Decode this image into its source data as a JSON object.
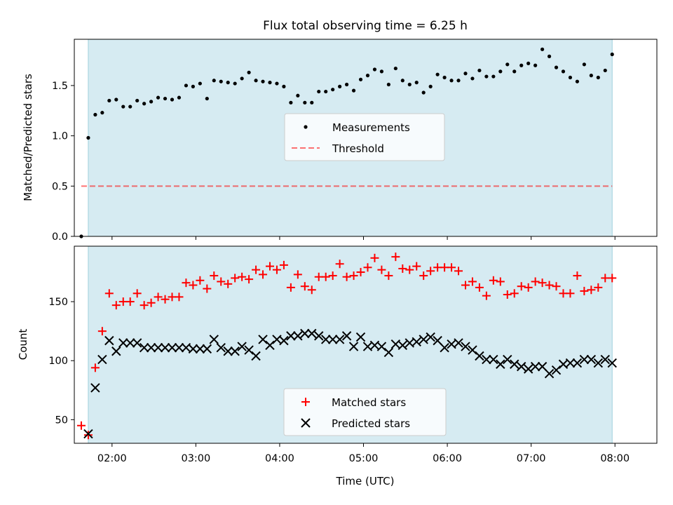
{
  "chart_data": {
    "type": "scatter",
    "title": "Flux total observing time = 6.25 h",
    "xlabel": "Time (UTC)",
    "xticks": [
      "02:00",
      "03:00",
      "04:00",
      "05:00",
      "06:00",
      "07:00",
      "08:00"
    ],
    "xlim": [
      "01:33",
      "08:30"
    ],
    "shaded_interval": [
      "01:43",
      "07:58"
    ],
    "colors": {
      "shade": "#add8e6",
      "matched": "#ff0000",
      "predicted": "#000000",
      "threshold": "#ff0000"
    },
    "top": {
      "ylabel": "Matched/Predicted stars",
      "ylim": [
        0,
        1.96
      ],
      "yticks": [
        "0.0",
        "0.5",
        "1.0",
        "1.5"
      ],
      "threshold": {
        "y": 0.5,
        "x": [
          "01:38",
          "07:58"
        ]
      },
      "legend": {
        "measurements": "Measurements",
        "threshold": "Threshold",
        "position": "center"
      },
      "series": [
        {
          "name": "Measurements",
          "x": [
            "01:38",
            "01:43",
            "01:48",
            "01:53",
            "01:58",
            "02:03",
            "02:08",
            "02:13",
            "02:18",
            "02:23",
            "02:28",
            "02:33",
            "02:38",
            "02:43",
            "02:48",
            "02:53",
            "02:58",
            "03:03",
            "03:08",
            "03:13",
            "03:18",
            "03:23",
            "03:28",
            "03:33",
            "03:38",
            "03:43",
            "03:48",
            "03:53",
            "03:58",
            "04:03",
            "04:08",
            "04:13",
            "04:18",
            "04:23",
            "04:28",
            "04:33",
            "04:38",
            "04:43",
            "04:48",
            "04:53",
            "04:58",
            "05:03",
            "05:08",
            "05:13",
            "05:18",
            "05:23",
            "05:28",
            "05:33",
            "05:38",
            "05:43",
            "05:48",
            "05:53",
            "05:58",
            "06:03",
            "06:08",
            "06:13",
            "06:18",
            "06:23",
            "06:28",
            "06:33",
            "06:38",
            "06:43",
            "06:48",
            "06:53",
            "06:58",
            "07:03",
            "07:08",
            "07:13",
            "07:18",
            "07:23",
            "07:28",
            "07:33",
            "07:38",
            "07:43",
            "07:48",
            "07:53",
            "07:58"
          ],
          "values": [
            0.0,
            0.98,
            1.21,
            1.23,
            1.35,
            1.36,
            1.29,
            1.29,
            1.35,
            1.32,
            1.34,
            1.38,
            1.37,
            1.36,
            1.38,
            1.5,
            1.49,
            1.52,
            1.37,
            1.55,
            1.54,
            1.53,
            1.52,
            1.57,
            1.63,
            1.55,
            1.54,
            1.53,
            1.52,
            1.49,
            1.33,
            1.4,
            1.33,
            1.33,
            1.44,
            1.44,
            1.46,
            1.49,
            1.51,
            1.45,
            1.56,
            1.6,
            1.66,
            1.64,
            1.51,
            1.67,
            1.55,
            1.51,
            1.53,
            1.43,
            1.49,
            1.61,
            1.58,
            1.55,
            1.55,
            1.62,
            1.57,
            1.65,
            1.59,
            1.59,
            1.64,
            1.71,
            1.64,
            1.7,
            1.72,
            1.7,
            1.86,
            1.79,
            1.68,
            1.64,
            1.58,
            1.54,
            1.71,
            1.6,
            1.58,
            1.65,
            1.81
          ]
        }
      ]
    },
    "bottom": {
      "ylabel": "Count",
      "ylim": [
        30,
        197
      ],
      "yticks": [
        "50",
        "100",
        "150"
      ],
      "legend": {
        "matched": "Matched stars",
        "predicted": "Predicted stars",
        "position": "lower center"
      },
      "series": [
        {
          "name": "Matched stars",
          "x": [
            "01:38",
            "01:43",
            "01:48",
            "01:53",
            "01:58",
            "02:03",
            "02:08",
            "02:13",
            "02:18",
            "02:23",
            "02:28",
            "02:33",
            "02:38",
            "02:43",
            "02:48",
            "02:53",
            "02:58",
            "03:03",
            "03:08",
            "03:13",
            "03:18",
            "03:23",
            "03:28",
            "03:33",
            "03:38",
            "03:43",
            "03:48",
            "03:53",
            "03:58",
            "04:03",
            "04:08",
            "04:13",
            "04:18",
            "04:23",
            "04:28",
            "04:33",
            "04:38",
            "04:43",
            "04:48",
            "04:53",
            "04:58",
            "05:03",
            "05:08",
            "05:13",
            "05:18",
            "05:23",
            "05:28",
            "05:33",
            "05:38",
            "05:43",
            "05:48",
            "05:53",
            "05:58",
            "06:03",
            "06:08",
            "06:13",
            "06:18",
            "06:23",
            "06:28",
            "06:33",
            "06:38",
            "06:43",
            "06:48",
            "06:53",
            "06:58",
            "07:03",
            "07:08",
            "07:13",
            "07:18",
            "07:23",
            "07:28",
            "07:33",
            "07:38",
            "07:43",
            "07:48",
            "07:53",
            "07:58"
          ],
          "values": [
            45,
            37,
            94,
            125,
            157,
            147,
            150,
            150,
            157,
            147,
            149,
            154,
            152,
            154,
            154,
            166,
            164,
            168,
            161,
            172,
            167,
            165,
            170,
            171,
            169,
            177,
            173,
            180,
            177,
            181,
            162,
            173,
            163,
            160,
            171,
            171,
            172,
            182,
            171,
            172,
            175,
            179,
            187,
            177,
            172,
            188,
            178,
            177,
            180,
            172,
            176,
            179,
            179,
            179,
            176,
            164,
            167,
            162,
            155,
            168,
            167,
            156,
            157,
            163,
            162,
            167,
            166,
            164,
            163,
            157,
            157,
            172,
            159,
            160,
            162,
            170,
            170
          ]
        },
        {
          "name": "Predicted stars",
          "x": [
            "01:43",
            "01:48",
            "01:53",
            "01:58",
            "02:03",
            "02:08",
            "02:13",
            "02:18",
            "02:23",
            "02:28",
            "02:33",
            "02:38",
            "02:43",
            "02:48",
            "02:53",
            "02:58",
            "03:03",
            "03:08",
            "03:13",
            "03:18",
            "03:23",
            "03:28",
            "03:33",
            "03:38",
            "03:43",
            "03:48",
            "03:53",
            "03:58",
            "04:03",
            "04:08",
            "04:13",
            "04:18",
            "04:23",
            "04:28",
            "04:33",
            "04:38",
            "04:43",
            "04:48",
            "04:53",
            "04:58",
            "05:03",
            "05:08",
            "05:13",
            "05:18",
            "05:23",
            "05:28",
            "05:33",
            "05:38",
            "05:43",
            "05:48",
            "05:53",
            "05:58",
            "06:03",
            "06:08",
            "06:13",
            "06:18",
            "06:23",
            "06:28",
            "06:33",
            "06:38",
            "06:43",
            "06:48",
            "06:53",
            "06:58",
            "07:03",
            "07:08",
            "07:13",
            "07:18",
            "07:23",
            "07:28",
            "07:33",
            "07:38",
            "07:43",
            "07:48",
            "07:53",
            "07:58"
          ],
          "values": [
            38,
            77,
            101,
            117,
            108,
            115,
            115,
            115,
            111,
            111,
            111,
            111,
            111,
            111,
            111,
            110,
            110,
            110,
            118,
            111,
            108,
            108,
            112,
            109,
            104,
            118,
            113,
            118,
            117,
            121,
            121,
            123,
            123,
            121,
            118,
            118,
            118,
            121,
            112,
            120,
            112,
            113,
            112,
            107,
            114,
            113,
            115,
            116,
            118,
            120,
            117,
            111,
            114,
            115,
            112,
            109,
            104,
            101,
            101,
            97,
            101,
            97,
            95,
            93,
            95,
            95,
            89,
            92,
            97,
            98,
            98,
            101,
            101,
            98,
            101,
            98
          ]
        }
      ]
    }
  }
}
